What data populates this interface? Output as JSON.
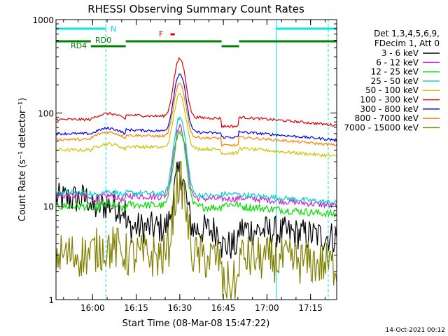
{
  "chart_data": {
    "type": "line",
    "title": "RHESSI Observing Summary Count Rates",
    "xlabel": "Start Time (08-Mar-08 15:47:22)",
    "ylabel": "Count Rate (s⁻¹ detector⁻¹)",
    "yscale": "log",
    "ylim": [
      1,
      1000
    ],
    "xlim_minutes_after_start": [
      0,
      96.6
    ],
    "x_ticks": [
      {
        "label": "16:00",
        "minute": 12.6
      },
      {
        "label": "16:15",
        "minute": 27.6
      },
      {
        "label": "16:30",
        "minute": 42.6
      },
      {
        "label": "16:45",
        "minute": 57.6
      },
      {
        "label": "17:00",
        "minute": 72.6
      },
      {
        "label": "17:15",
        "minute": 87.6
      }
    ],
    "y_ticks": [
      {
        "label": "1",
        "value": 1
      },
      {
        "label": "10",
        "value": 10
      },
      {
        "label": "100",
        "value": 100
      },
      {
        "label": "1000",
        "value": 1000
      }
    ],
    "legend_header": [
      "Det 1,3,4,5,6,9,",
      "FDecim 1, Att 0"
    ],
    "legend_position": "right",
    "timestamp": "14-Oct-2021 00:12",
    "flags": [
      {
        "label": "N",
        "color": "#00e5e5"
      },
      {
        "label": "RD0",
        "color": "#008000"
      },
      {
        "label": "RD4",
        "color": "#008000"
      },
      {
        "label": "F",
        "color": "#e00000"
      }
    ],
    "series": [
      {
        "name": "3 - 6 keV",
        "color": "#000000",
        "base": [
          12,
          10,
          6,
          3.8
        ],
        "peak": 17,
        "noise": 0.5
      },
      {
        "name": "6 - 12 keV",
        "color": "#d020d0",
        "base": [
          13,
          12.5,
          13,
          12
        ],
        "peak": 58,
        "noise": 0.1
      },
      {
        "name": "12 - 25 keV",
        "color": "#00e000",
        "base": [
          10,
          10,
          10.5,
          10.5
        ],
        "peak": 52,
        "noise": 0.12
      },
      {
        "name": "25 - 50 keV",
        "color": "#00d0d0",
        "base": [
          14,
          14,
          14,
          13.5
        ],
        "peak": 75,
        "noise": 0.08
      },
      {
        "name": "50 - 100 keV",
        "color": "#d0c000",
        "base": [
          40,
          45,
          44,
          37
        ],
        "peak": 115,
        "noise": 0.05
      },
      {
        "name": "100 - 300 keV",
        "color": "#e00000",
        "base": [
          85,
          95,
          95,
          72
        ],
        "peak": 290,
        "noise": 0.04
      },
      {
        "name": "300 - 800 keV",
        "color": "#0000e0",
        "base": [
          60,
          66,
          66,
          55
        ],
        "peak": 200,
        "noise": 0.04
      },
      {
        "name": "800 - 7000 keV",
        "color": "#ff8000",
        "base": [
          52,
          60,
          58,
          45
        ],
        "peak": 150,
        "noise": 0.04
      },
      {
        "name": "7000 - 15000 keV",
        "color": "#808000",
        "base": [
          3,
          3.5,
          3,
          1.5
        ],
        "peak": 15,
        "noise": 0.7
      }
    ]
  }
}
